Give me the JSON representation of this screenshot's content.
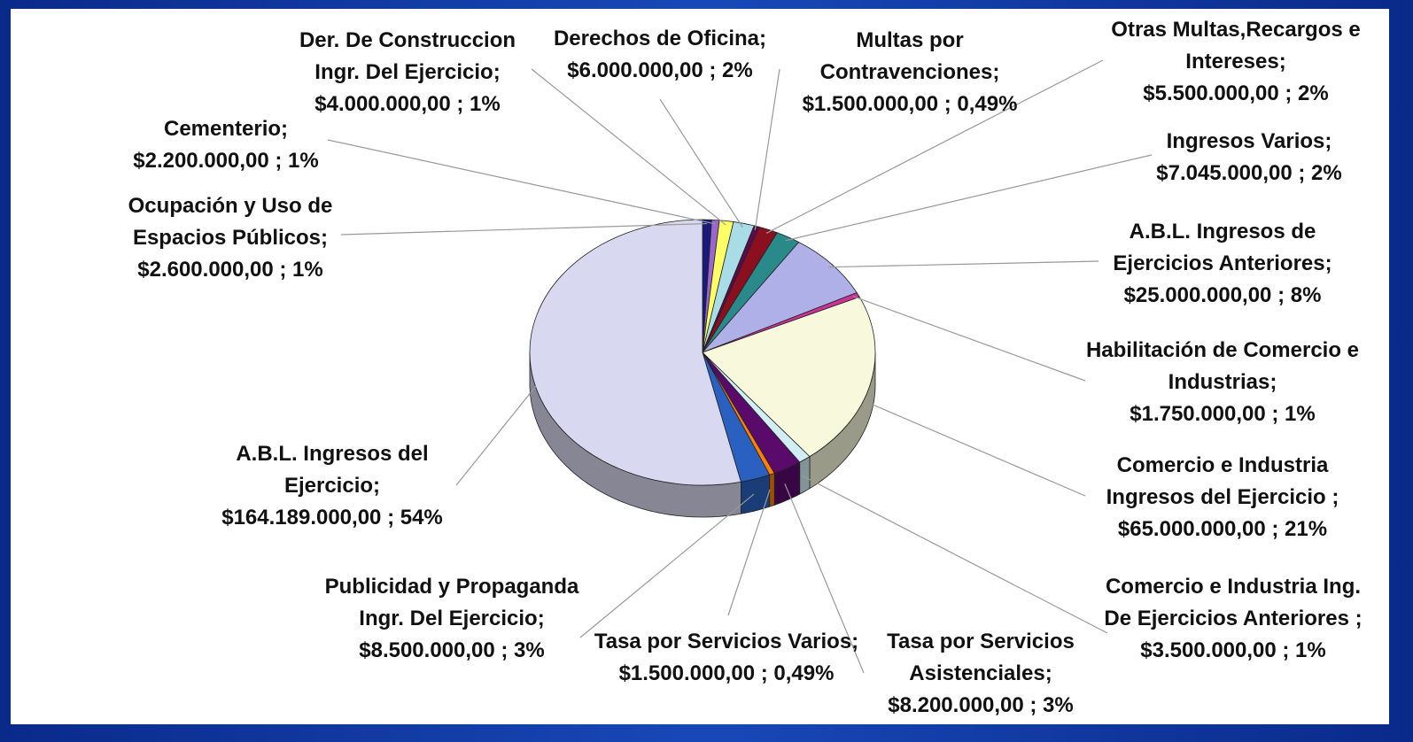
{
  "chart_data": {
    "type": "pie3d",
    "categories": [
      "Ocupación y Uso de Espacios Públicos;",
      "Cementerio;",
      "Der. De Construccion Ingr. Del Ejercicio;",
      "Derechos de Oficina;",
      "Multas por Contravenciones;",
      "Otras Multas,Recargos e Intereses;",
      "Ingresos Varios;",
      "A.B.L. Ingresos de Ejercicios Anteriores;",
      "Habilitación de Comercio e Industrias;",
      "Comercio e Industria Ingresos del Ejercicio ;",
      "Comercio e Industria Ing. De Ejercicios Anteriores ;",
      "Tasa por Servicios Asistenciales;",
      "Tasa por Servicios Varios;",
      "Publicidad y Propaganda Ingr. Del Ejercicio;",
      "A.B.L. Ingresos del Ejercicio;"
    ],
    "values": [
      2600000,
      2200000,
      4000000,
      6000000,
      1500000,
      5500000,
      7045000,
      25000000,
      1750000,
      65000000,
      3500000,
      8200000,
      1500000,
      8500000,
      164189000
    ],
    "value_labels": [
      "$2.600.000,00 ; 1%",
      "$2.200.000,00 ; 1%",
      "$4.000.000,00 ; 1%",
      "$6.000.000,00 ; 2%",
      "$1.500.000,00 ; 0,49%",
      "$5.500.000,00 ; 2%",
      "$7.045.000,00 ; 2%",
      "$25.000.000,00 ; 8%",
      "$1.750.000,00 ; 1%",
      "$65.000.000,00 ; 21%",
      "$3.500.000,00 ; 1%",
      "$8.200.000,00 ; 3%",
      "$1.500.000,00 ; 0,49%",
      "$8.500.000,00 ; 3%",
      "$164.189.000,00 ; 54%"
    ],
    "colors": [
      "#1a1a7a",
      "#9a66cc",
      "#ffff66",
      "#a8dde8",
      "#5a0a50",
      "#8a1020",
      "#2a8a8a",
      "#b0b0e8",
      "#cc3399",
      "#f8f8dc",
      "#d0eef4",
      "#5a0a6a",
      "#ff8000",
      "#2a60c0",
      "#d8d8f0"
    ]
  }
}
